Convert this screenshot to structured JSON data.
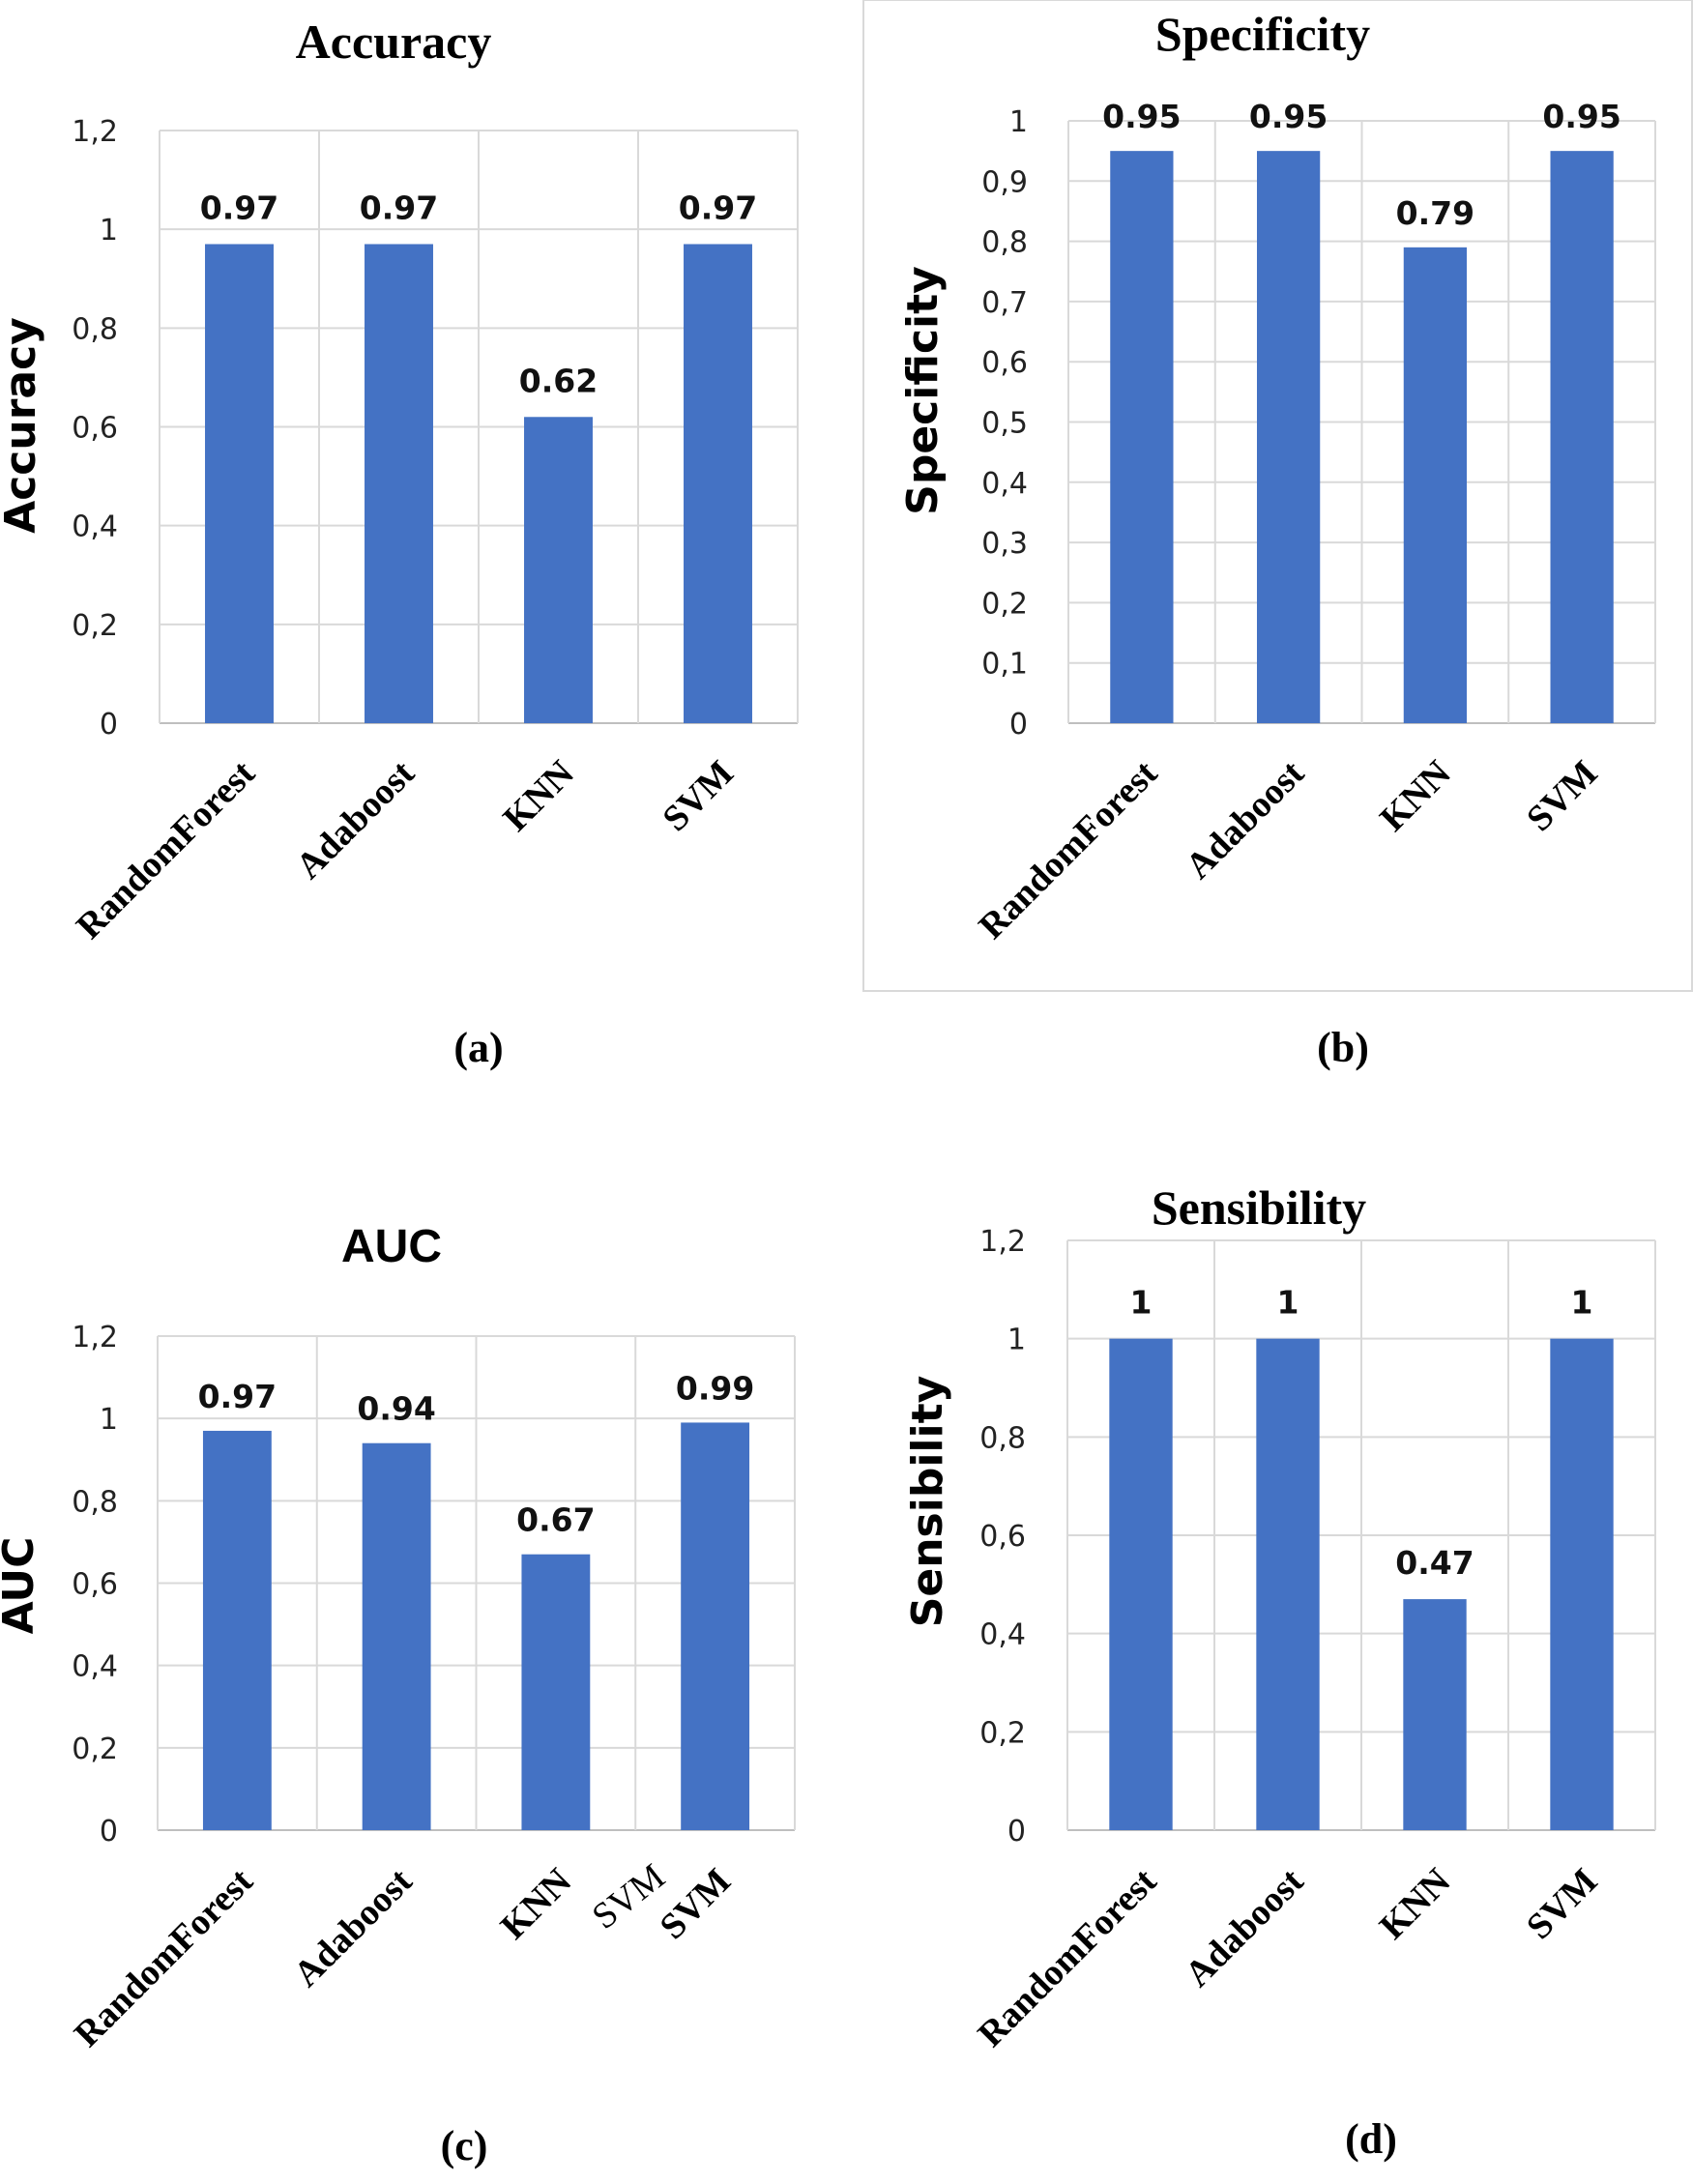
{
  "chart_data": [
    {
      "id": "a",
      "type": "bar",
      "title": "Accuracy",
      "ylabel": "Accuracy",
      "xlabel": "",
      "caption": "(a)",
      "categories": [
        "RandomForest",
        "Adaboost",
        "KNN",
        "SVM"
      ],
      "values": [
        0.97,
        0.97,
        0.62,
        0.97
      ],
      "data_labels": [
        "0.97",
        "0.97",
        "0.62",
        "0.97"
      ],
      "ylim": [
        0,
        1.2
      ],
      "yticks": [
        "0",
        "0,2",
        "0,4",
        "0,6",
        "0,8",
        "1",
        "1,2"
      ],
      "grid": true
    },
    {
      "id": "b",
      "type": "bar",
      "title": "Specificity",
      "ylabel": "Specificity",
      "xlabel": "",
      "caption": "(b)",
      "categories": [
        "RandomForest",
        "Adaboost",
        "KNN",
        "SVM"
      ],
      "values": [
        0.95,
        0.95,
        0.79,
        0.95
      ],
      "data_labels": [
        "0.95",
        "0.95",
        "0.79",
        "0.95"
      ],
      "ylim": [
        0,
        1
      ],
      "yticks": [
        "0",
        "0,1",
        "0,2",
        "0,3",
        "0,4",
        "0,5",
        "0,6",
        "0,7",
        "0,8",
        "0,9",
        "1"
      ],
      "grid": true
    },
    {
      "id": "c",
      "type": "bar",
      "title": "AUC",
      "ylabel": "AUC",
      "xlabel": "",
      "caption": "(c)",
      "categories": [
        "RandomForest",
        "Adaboost",
        "KNN",
        "SVM"
      ],
      "values": [
        0.97,
        0.94,
        0.67,
        0.99
      ],
      "data_labels": [
        "0.97",
        "0.94",
        "0.67",
        "0.99"
      ],
      "ylim": [
        0,
        1.2
      ],
      "yticks": [
        "0",
        "0,2",
        "0,4",
        "0,6",
        "0,8",
        "1",
        "1,2"
      ],
      "grid": true,
      "stray_labels": [
        "SVM"
      ]
    },
    {
      "id": "d",
      "type": "bar",
      "title": "Sensibility",
      "ylabel": "Sensibility",
      "xlabel": "",
      "caption": "(d)",
      "categories": [
        "RandomForest",
        "Adaboost",
        "KNN",
        "SVM"
      ],
      "values": [
        1,
        1,
        0.47,
        1
      ],
      "data_labels": [
        "1",
        "1",
        "0.47",
        "1"
      ],
      "ylim": [
        0,
        1.2
      ],
      "yticks": [
        "0",
        "0,2",
        "0,4",
        "0,6",
        "0,8",
        "1",
        "1,2"
      ],
      "grid": true
    }
  ],
  "colors": {
    "bar": "#4472c4",
    "grid": "#d9d9d9"
  }
}
